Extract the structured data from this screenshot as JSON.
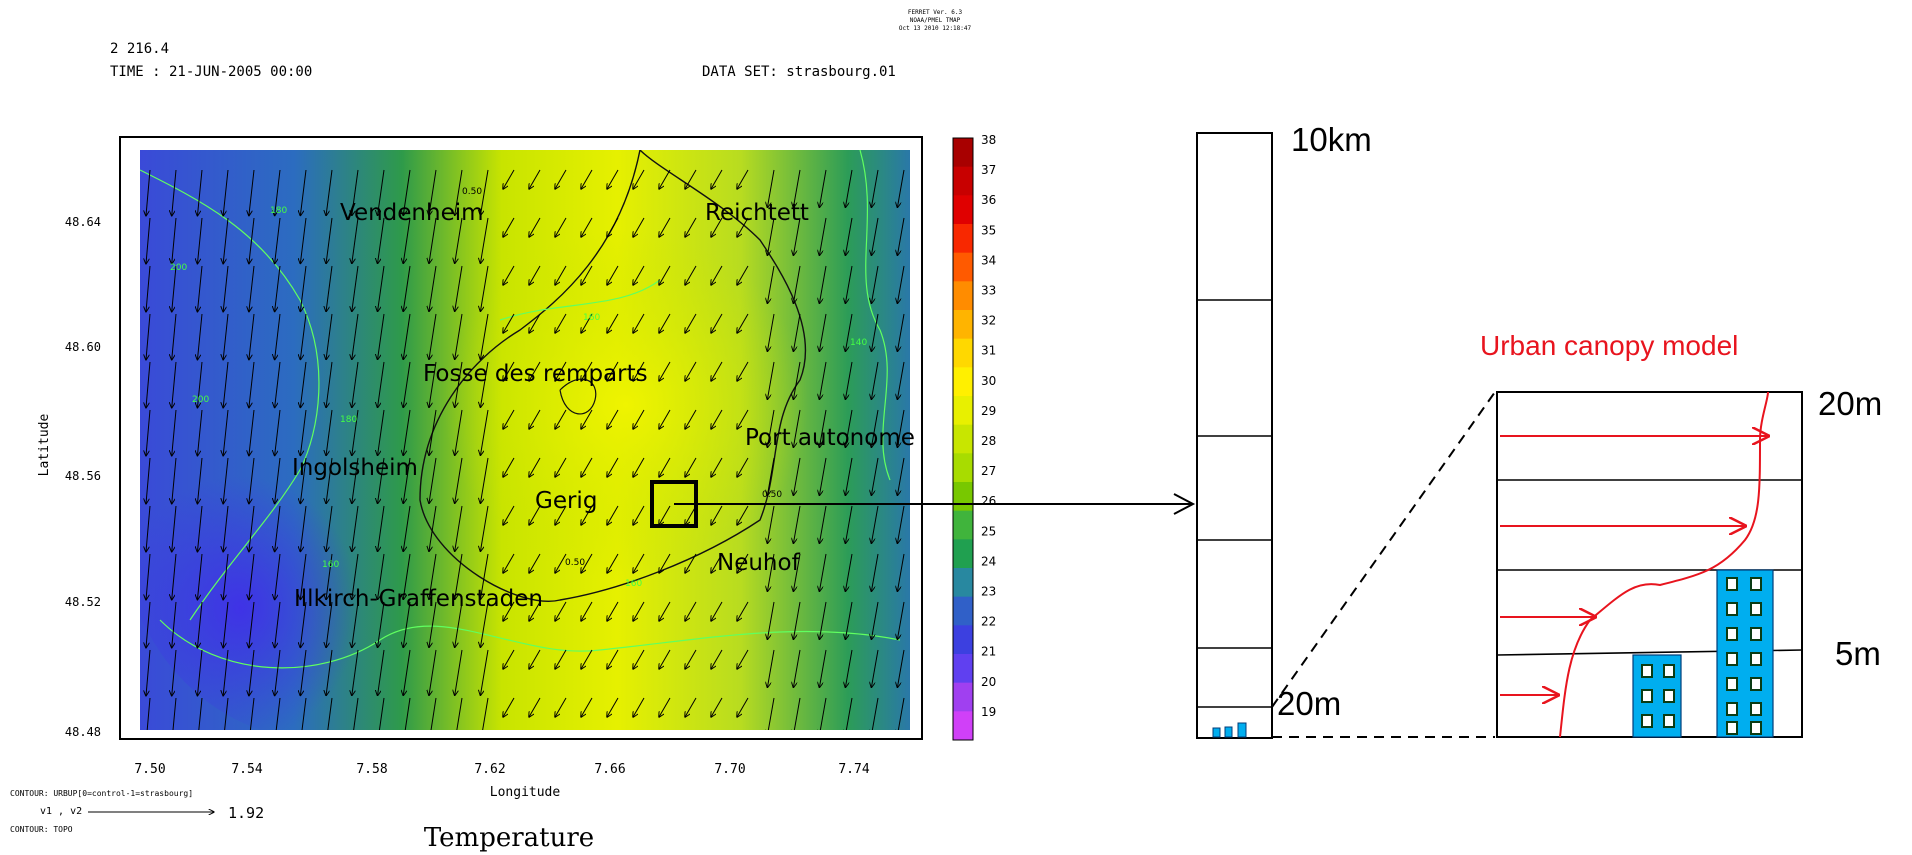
{
  "header": {
    "line1": "2   216.4",
    "time": "TIME : 21-JUN-2005 00:00",
    "dataset": "DATA SET: strasbourg.01",
    "stamp": [
      "FERRET Ver. 6.3",
      "NOAA/PMEL TMAP",
      "Oct 13 2010 12:18:47"
    ]
  },
  "map": {
    "xlabel": "Longitude",
    "ylabel": "Latitude",
    "xticks": [
      "7.50",
      "7.54",
      "7.58",
      "7.62",
      "7.66",
      "7.70",
      "7.74"
    ],
    "yticks": [
      "48.64",
      "48.60",
      "48.56",
      "48.52",
      "48.48"
    ],
    "places": [
      "Vendenheim",
      "Reichtett",
      "Fosse des remparts",
      "Port autonome",
      "Ingolsheim",
      "Gerig",
      "Neuhof",
      "Illkirch-Graffenstaden"
    ],
    "contour_labels": [
      "0.50",
      "0.50",
      "0.50",
      "160",
      "160",
      "160",
      "180",
      "180",
      "200",
      "200",
      "140"
    ],
    "colorbar_ticks": [
      "38",
      "37",
      "36",
      "35",
      "34",
      "33",
      "32",
      "31",
      "30",
      "29",
      "28",
      "27",
      "26",
      "25",
      "24",
      "23",
      "22",
      "21",
      "20",
      "19"
    ],
    "colorbar_colors": [
      "#a80000",
      "#c80000",
      "#e00000",
      "#f82800",
      "#ff5a00",
      "#ff8c00",
      "#ffb400",
      "#ffd800",
      "#fff000",
      "#e8f000",
      "#c8e600",
      "#a8dc00",
      "#78c800",
      "#40b43c",
      "#20a050",
      "#2888a0",
      "#3060c8",
      "#3c40e0",
      "#6040f0",
      "#a040f0",
      "#d040f8"
    ],
    "footer_contour": "CONTOUR: URBUP[0=control-1=strasbourg]",
    "vector_label": "v1 , v2",
    "vector_value": "1.92",
    "footer_topo": "CONTOUR: TOPO",
    "title": "Temperature"
  },
  "column": {
    "top_label": "10km",
    "bottom_label": "20m"
  },
  "canopy": {
    "title": "Urban canopy model",
    "top_label": "20m",
    "mid_label": "5m",
    "accent": "#e8141e",
    "building_fill": "#00aeef"
  }
}
